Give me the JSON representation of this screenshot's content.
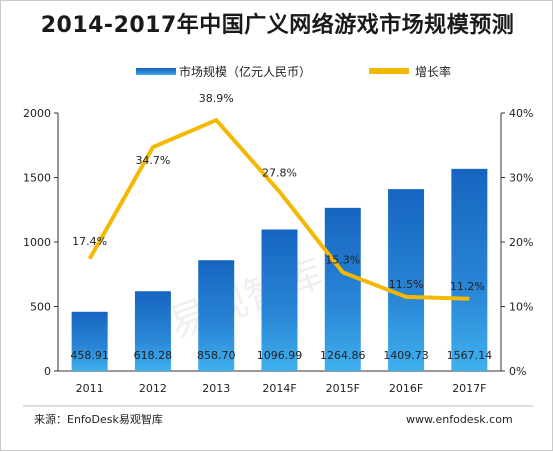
{
  "title": "2014-2017年中国广义网络游戏市场规模预测",
  "legend": [
    {
      "label": "市场规模（亿元人民币）",
      "color": "#1f77c4",
      "kind": "bar"
    },
    {
      "label": "增长率",
      "color": "#f5b800",
      "kind": "line"
    }
  ],
  "footer": {
    "source": "来源：EnfoDesk易观智库",
    "url": "www.enfodesk.com"
  },
  "watermark": "易观智库",
  "chart_data": {
    "type": "bar",
    "categories": [
      "2011",
      "2012",
      "2013",
      "2014F",
      "2015F",
      "2016F",
      "2017F"
    ],
    "series": [
      {
        "name": "市场规模（亿元人民币）",
        "type": "bar",
        "axis": "left",
        "values": [
          458.91,
          618.28,
          858.7,
          1096.99,
          1264.86,
          1409.73,
          1567.14
        ],
        "labels": [
          "458.91",
          "618.28",
          "858.70",
          "1096.99",
          "1264.86",
          "1409.73",
          "1567.14"
        ],
        "color": "#1f77c4"
      },
      {
        "name": "增长率",
        "type": "line",
        "axis": "right",
        "values": [
          17.4,
          34.7,
          38.9,
          27.8,
          15.3,
          11.5,
          11.2
        ],
        "labels": [
          "17.4%",
          "34.7%",
          "38.9%",
          "27.8%",
          "15.3%",
          "11.5%",
          "11.2%"
        ],
        "color": "#f5b800"
      }
    ],
    "y_left": {
      "min": 0,
      "max": 2000,
      "ticks": [
        "0",
        "500",
        "1000",
        "1500",
        "2000"
      ]
    },
    "y_right": {
      "min": 0,
      "max": 40,
      "ticks": [
        "0%",
        "10%",
        "20%",
        "30%",
        "40%"
      ]
    },
    "grid": false,
    "legend_position": "top"
  }
}
